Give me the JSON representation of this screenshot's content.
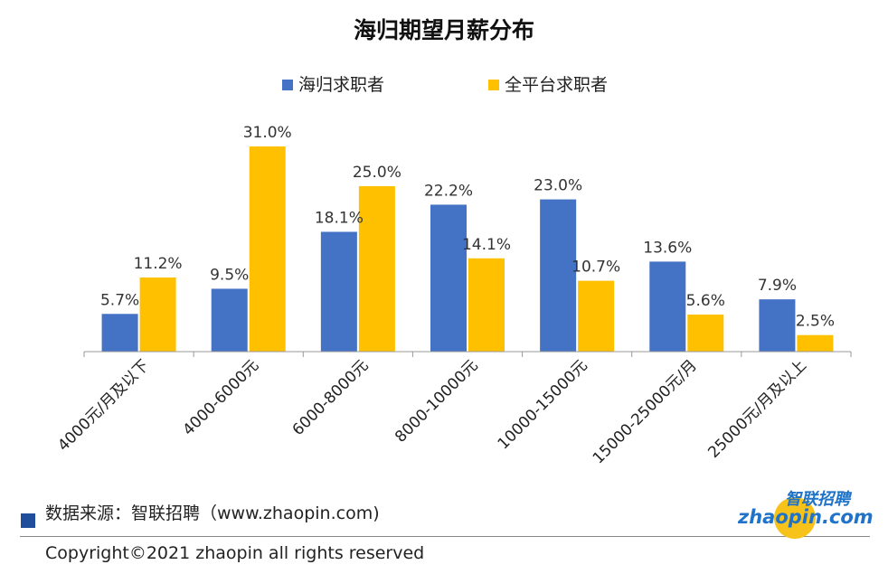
{
  "chart_data": {
    "type": "bar",
    "title": "海归期望月薪分布",
    "categories": [
      "4000元/月及以下",
      "4000-6000元",
      "6000-8000元",
      "8000-10000元",
      "10000-15000元",
      "15000-25000元/月",
      "25000元/月及以上"
    ],
    "series": [
      {
        "name": "海归求职者",
        "color": "#4472c4",
        "values": [
          5.7,
          9.5,
          18.1,
          22.2,
          23.0,
          13.6,
          7.9
        ],
        "labels": [
          "5.7%",
          "9.5%",
          "18.1%",
          "22.2%",
          "23.0%",
          "13.6%",
          "7.9%"
        ]
      },
      {
        "name": "全平台求职者",
        "color": "#ffc000",
        "values": [
          11.2,
          31.0,
          25.0,
          14.1,
          10.7,
          5.6,
          2.5
        ],
        "labels": [
          "11.2%",
          "31.0%",
          "25.0%",
          "14.1%",
          "10.7%",
          "5.6%",
          "2.5%"
        ]
      }
    ],
    "ylim": [
      0,
      31
    ],
    "grid": false,
    "legend": "top"
  },
  "footer": {
    "source": "数据来源：智联招聘（www.zhaopin.com)",
    "copyright": "Copyright©2021 zhaopin all rights reserved"
  },
  "logo": {
    "cn": "智联招聘",
    "en": "zhaopin.com"
  }
}
